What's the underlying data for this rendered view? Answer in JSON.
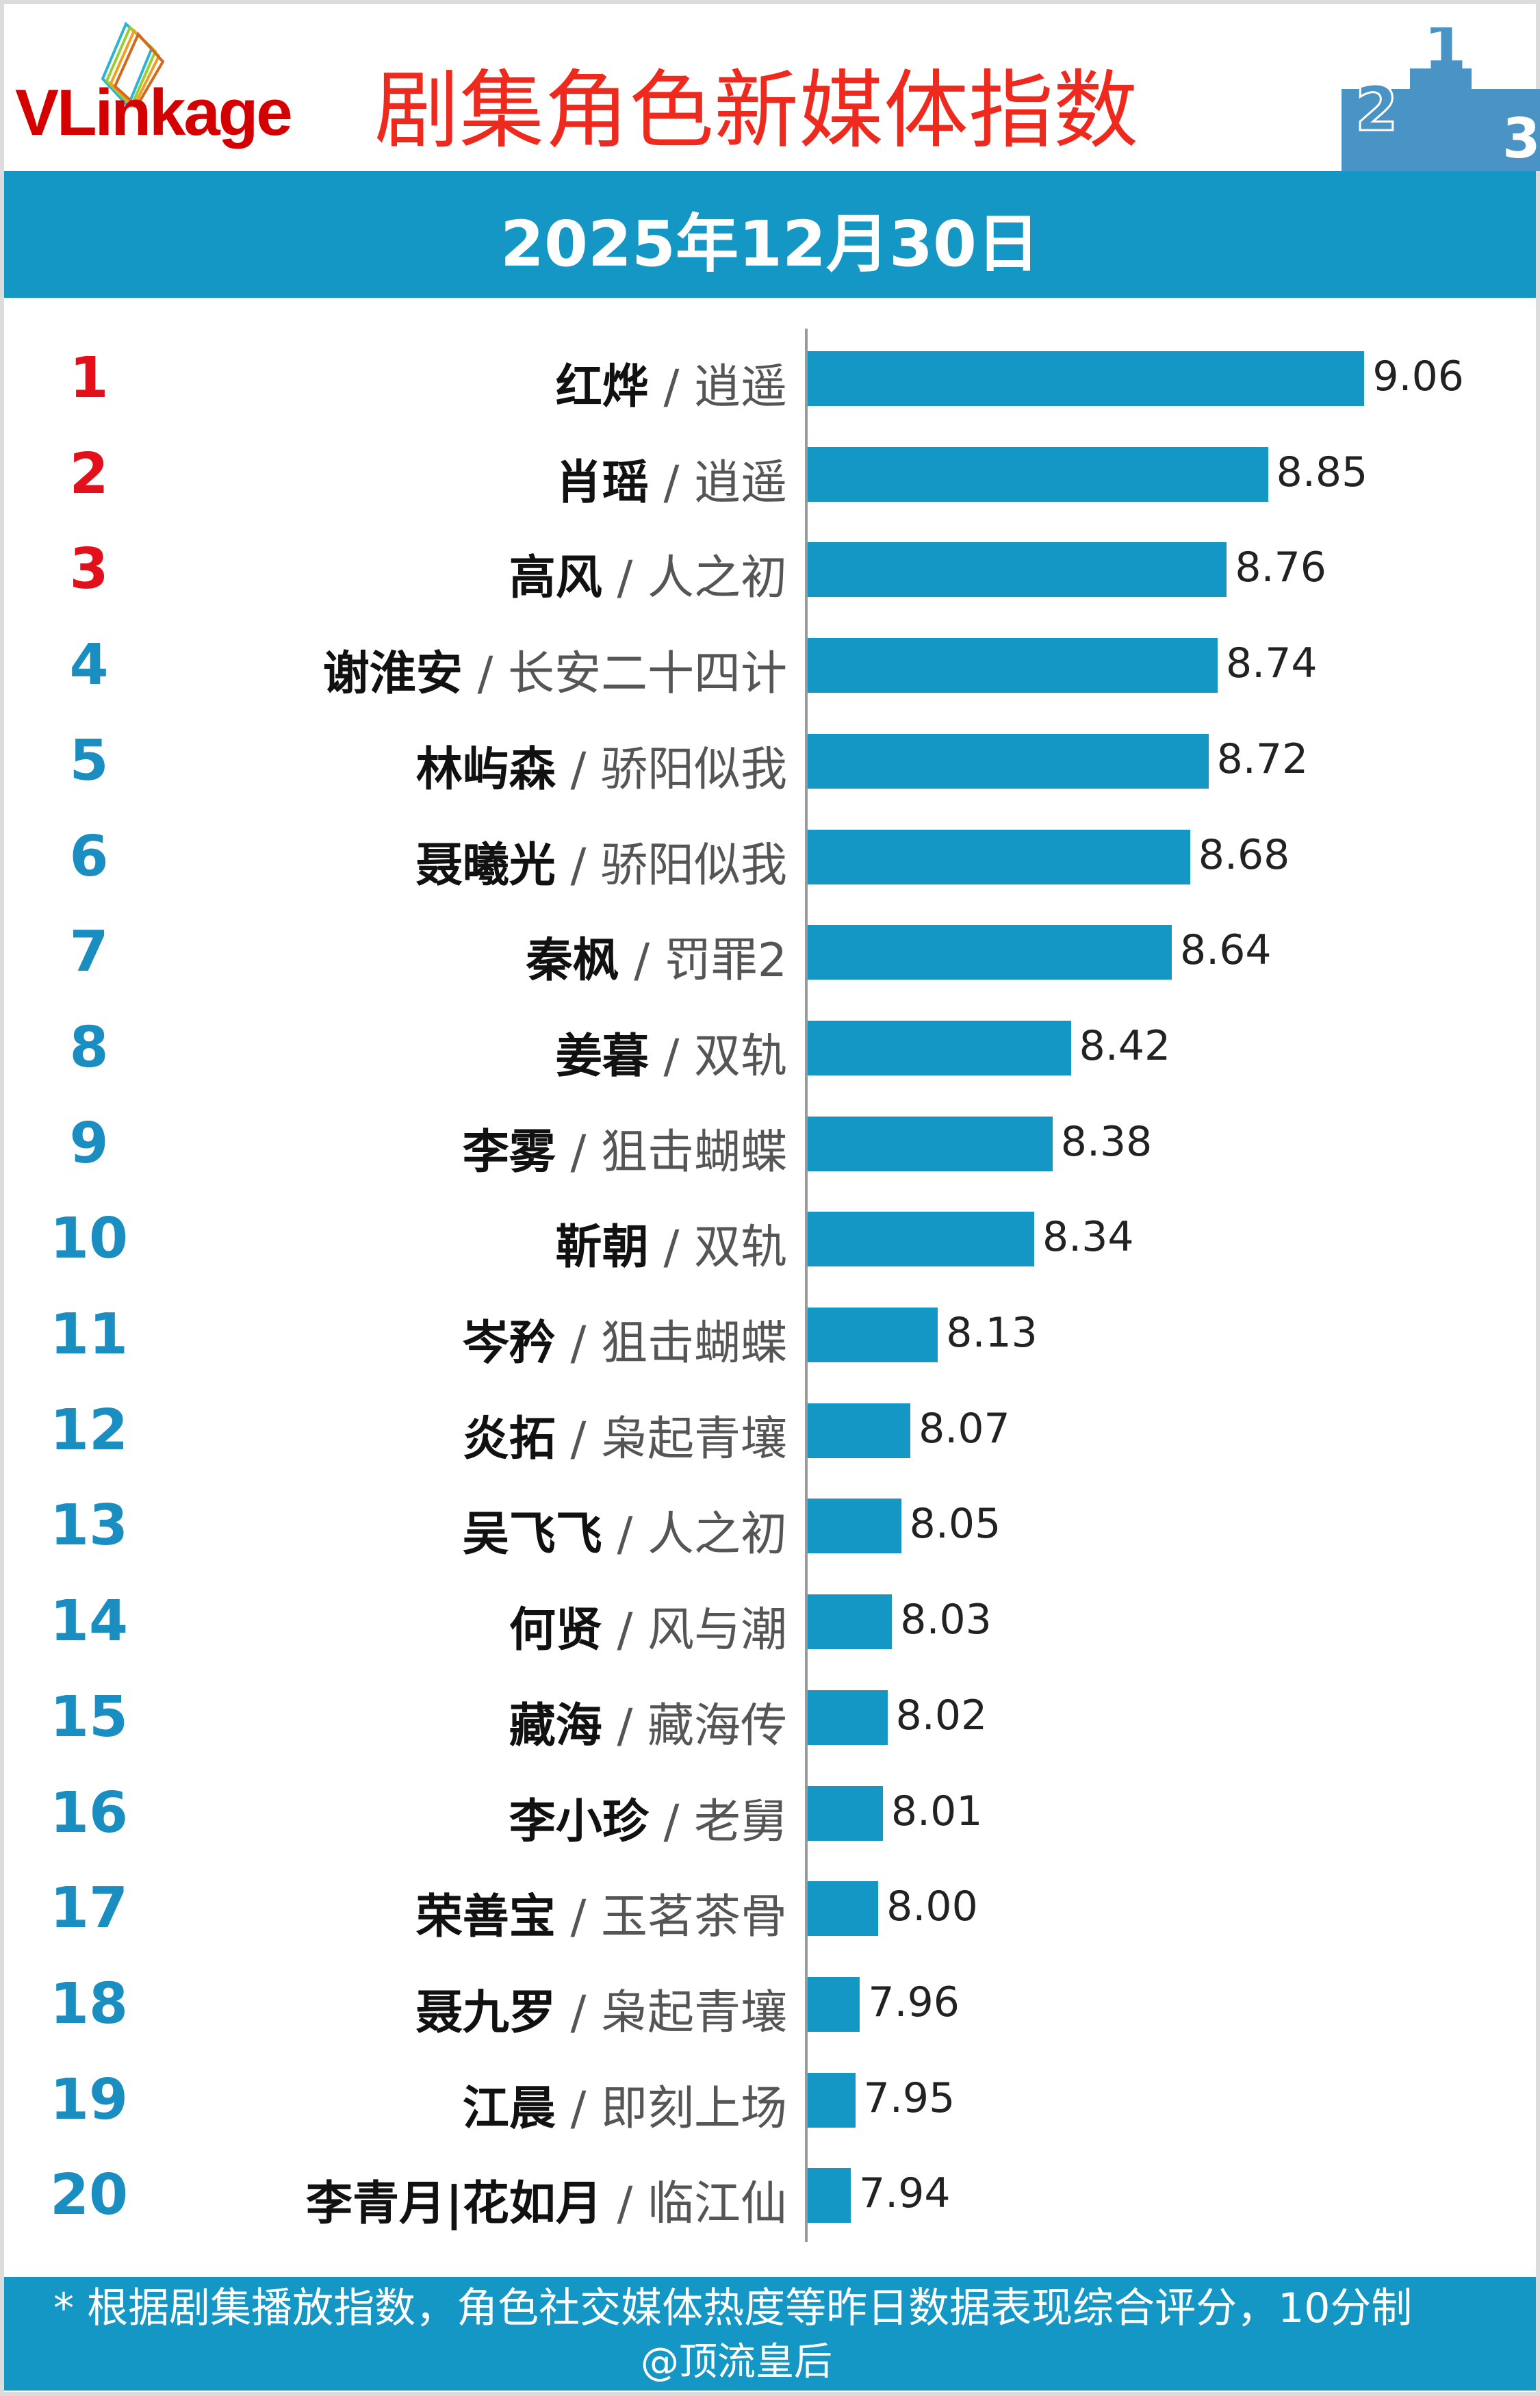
{
  "header": {
    "logo": "VLinkage",
    "title": "剧集角色新媒体指数",
    "date": "2025年12月30日"
  },
  "colors": {
    "bar": "#1597c5",
    "title": "#ee2a1e",
    "rank_top": "#e3101b",
    "rank": "#1a8ec0"
  },
  "chart_data": {
    "type": "bar",
    "orientation": "horizontal",
    "categories": [
      "红烨",
      "肖瑶",
      "高风",
      "谢淮安",
      "林屿森",
      "聂曦光",
      "秦枫",
      "姜暮",
      "李雾",
      "靳朝",
      "岑矜",
      "炎拓",
      "吴飞飞",
      "何贤",
      "藏海",
      "李小珍",
      "荣善宝",
      "聂九罗",
      "江晨",
      "李青月|花如月"
    ],
    "shows": [
      "逍遥",
      "逍遥",
      "人之初",
      "长安二十四计",
      "骄阳似我",
      "骄阳似我",
      "罚罪2",
      "双轨",
      "狙击蝴蝶",
      "双轨",
      "狙击蝴蝶",
      "枭起青壤",
      "人之初",
      "风与潮",
      "藏海传",
      "老舅",
      "玉茗茶骨",
      "枭起青壤",
      "即刻上场",
      "临江仙"
    ],
    "ranks": [
      "1",
      "2",
      "3",
      "4",
      "5",
      "6",
      "7",
      "8",
      "9",
      "10",
      "11",
      "12",
      "13",
      "14",
      "15",
      "16",
      "17",
      "18",
      "19",
      "20"
    ],
    "values": [
      9.06,
      8.85,
      8.76,
      8.74,
      8.72,
      8.68,
      8.64,
      8.42,
      8.38,
      8.34,
      8.13,
      8.07,
      8.05,
      8.03,
      8.02,
      8.01,
      8.0,
      7.96,
      7.95,
      7.94
    ],
    "value_labels": [
      "9.06",
      "8.85",
      "8.76",
      "8.74",
      "8.72",
      "8.68",
      "8.64",
      "8.42",
      "8.38",
      "8.34",
      "8.13",
      "8.07",
      "8.05",
      "8.03",
      "8.02",
      "8.01",
      "8.00",
      "7.96",
      "7.95",
      "7.94"
    ],
    "separator": "/"
  },
  "footer": {
    "note": "* 根据剧集播放指数，角色社交媒体热度等昨日数据表现综合评分，10分制",
    "watermark": "@顶流皇后"
  }
}
